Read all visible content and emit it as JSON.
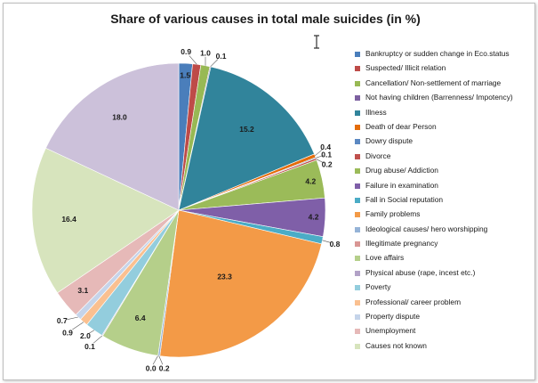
{
  "chart_data": {
    "type": "pie",
    "title": "Share of various causes in  total male suicides (in %)",
    "legend_position": "right",
    "start_angle": "top, clockwise",
    "slices": [
      {
        "label": "Bankruptcy or sudden change in Eco.status",
        "value": 1.5,
        "color": "#4a7ebb"
      },
      {
        "label": "Suspected/ Illicit relation",
        "value": 0.9,
        "color": "#be4b48"
      },
      {
        "label": "Cancellation/ Non-settlement of marriage",
        "value": 1.0,
        "color": "#98b954"
      },
      {
        "label": "Not having children (Barrenness/ Impotency)",
        "value": 0.1,
        "color": "#7d60a0"
      },
      {
        "label": "Illness",
        "value": 15.2,
        "color": "#31849b"
      },
      {
        "label": "Death of dear Person",
        "value": 0.4,
        "color": "#e46c0a"
      },
      {
        "label": "Dowry dispute",
        "value": 0.1,
        "color": "#5b88c2"
      },
      {
        "label": "Divorce",
        "value": 0.2,
        "color": "#c0504d"
      },
      {
        "label": "Drug abuse/ Addiction",
        "value": 4.2,
        "color": "#9bbb59"
      },
      {
        "label": "Failure in examination",
        "value": 4.2,
        "color": "#7f5fa8"
      },
      {
        "label": "Fall in Social reputation",
        "value": 0.8,
        "color": "#4bacc6"
      },
      {
        "label": "Family problems",
        "value": 23.3,
        "color": "#f39a47"
      },
      {
        "label": "Ideological causes/ hero worshipping",
        "value": 0.2,
        "color": "#95b3d7"
      },
      {
        "label": "Illegitimate pregnancy",
        "value": 0.0,
        "color": "#d99694"
      },
      {
        "label": "Love affairs",
        "value": 6.4,
        "color": "#b5cf8a"
      },
      {
        "label": "Physical abuse (rape, incest etc.)",
        "value": 0.1,
        "color": "#b2a2c7"
      },
      {
        "label": "Poverty",
        "value": 2.0,
        "color": "#93cddd"
      },
      {
        "label": "Professional/ career problem",
        "value": 0.9,
        "color": "#fac090"
      },
      {
        "label": "Property dispute",
        "value": 0.7,
        "color": "#c5d4ea"
      },
      {
        "label": "Unemployment",
        "value": 3.1,
        "color": "#e6b9b8"
      },
      {
        "label": "Causes not known",
        "value": 16.4,
        "color": "#d7e4bd"
      },
      {
        "label": "",
        "value": 18.0,
        "color": "#ccc1da"
      }
    ],
    "data_labels": [
      "1.5",
      "0.9",
      "1.0",
      "0.1",
      "15.2",
      "0.4",
      "0.1",
      "0.2",
      "4.2",
      "4.2",
      "0.8",
      "23.3",
      "0.2",
      "0.0",
      "6.4",
      "0.1",
      "2.0",
      "0.9",
      "0.7",
      "3.1",
      "16.4",
      "18.0"
    ]
  },
  "icons": {
    "cursor": "text-cursor-icon"
  }
}
